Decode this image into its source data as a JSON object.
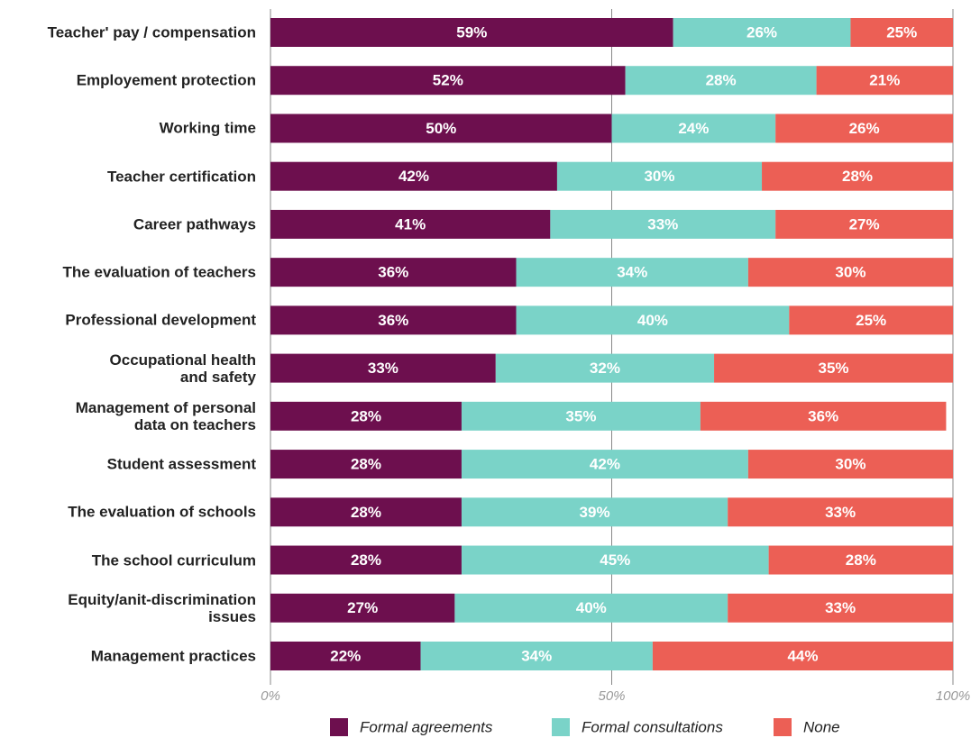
{
  "chart_data": {
    "type": "stacked-bar-horizontal",
    "categories": [
      "Teacher' pay / compensation",
      "Employement protection",
      "Working time",
      "Teacher certification",
      "Career pathways",
      "The evaluation of teachers",
      "Professional development",
      "Occupational health\nand safety",
      "Management of personal\ndata on teachers",
      "Student assessment",
      "The evaluation of schools",
      "The school curriculum",
      "Equity/anit-discrimination\nissues",
      "Management practices"
    ],
    "series": [
      {
        "name": "Formal agreements",
        "color": "#6d0f4e",
        "values": [
          59,
          52,
          50,
          42,
          41,
          36,
          36,
          33,
          28,
          28,
          28,
          28,
          27,
          22
        ],
        "value_labels": [
          "59%",
          "52%",
          "50%",
          "42%",
          "41%",
          "36%",
          "36%",
          "33%",
          "28%",
          "28%",
          "28%",
          "28%",
          "27%",
          "22%"
        ]
      },
      {
        "name": "Formal consultations",
        "color": "#7ad3c8",
        "values": [
          26,
          28,
          24,
          30,
          33,
          34,
          40,
          32,
          35,
          42,
          39,
          45,
          40,
          34
        ],
        "value_labels": [
          "26%",
          "28%",
          "24%",
          "30%",
          "33%",
          "34%",
          "40%",
          "32%",
          "35%",
          "42%",
          "39%",
          "45%",
          "40%",
          "34%"
        ]
      },
      {
        "name": "None",
        "color": "#ec5f55",
        "values": [
          25,
          21,
          26,
          28,
          27,
          30,
          25,
          35,
          36,
          30,
          33,
          28,
          33,
          44
        ],
        "value_labels": [
          "25%",
          "21%",
          "26%",
          "28%",
          "27%",
          "30%",
          "25%",
          "35%",
          "36%",
          "30%",
          "33%",
          "28%",
          "33%",
          "44%"
        ]
      }
    ],
    "xlim": [
      0,
      100
    ],
    "xticks": [
      {
        "value": 0,
        "label": "0%"
      },
      {
        "value": 50,
        "label": "50%"
      },
      {
        "value": 100,
        "label": "100%"
      }
    ],
    "grid": true,
    "legend": "bottom"
  }
}
